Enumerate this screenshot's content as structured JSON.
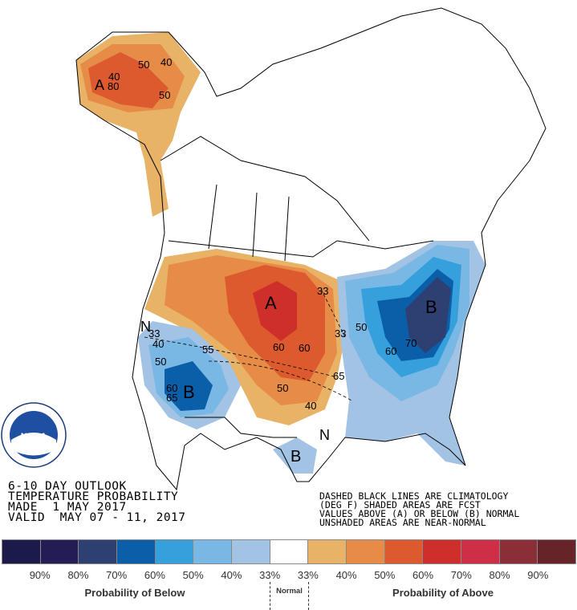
{
  "title": {
    "line1": "6-10 DAY OUTLOOK",
    "line2": "TEMPERATURE PROBABILITY",
    "line3": "MADE  1 MAY 2017",
    "line4": "VALID  MAY 07 - 11, 2017"
  },
  "notes": {
    "line1": "DASHED BLACK LINES ARE CLIMATOLOGY",
    "line2": "(DEG F) SHADED AREAS ARE FCST",
    "line3": "VALUES ABOVE (A) OR BELOW (B) NORMAL",
    "line4": "UNSHADED AREAS ARE NEAR-NORMAL"
  },
  "logo": {
    "text": "NOAA",
    "ring_text": "NATIONAL OCEANIC AND ATMOSPHERIC ADMINISTRATION U.S. DEPARTMENT OF COMMERCE"
  },
  "map_labels": {
    "above_west": "A",
    "below_east": "B",
    "below_southwest": "B",
    "below_texas": "B",
    "alaska_above": "A",
    "normal_ca": "N",
    "normal_gulf": "N",
    "c33a": "33",
    "c33b": "33",
    "c33c": "33",
    "c40a": "40",
    "c40b": "40",
    "c40c": "40",
    "c40d": "40",
    "c50a": "50",
    "c50b": "50",
    "c50c": "50",
    "c50d": "50",
    "c50e": "50",
    "c55": "55",
    "c60a": "60",
    "c60b": "60",
    "c60c": "60",
    "c60d": "60",
    "c65a": "65",
    "c65b": "65",
    "c70": "70",
    "c80": "80"
  },
  "legend": {
    "colors": [
      "#1c1a4a",
      "#241c55",
      "#2e3f72",
      "#0b5ea8",
      "#35a0dc",
      "#79b8e4",
      "#a2c3e3",
      "#ffffff",
      "#e8b267",
      "#e68c47",
      "#dd5a2e",
      "#cf2f2b",
      "#cf2f46",
      "#8c2e38",
      "#672428"
    ],
    "labels": [
      "90%",
      "80%",
      "70%",
      "60%",
      "50%",
      "40%",
      "33%",
      "33%",
      "40%",
      "50%",
      "60%",
      "70%",
      "80%",
      "90%"
    ],
    "below_caption": "Probability of Below",
    "normal_caption": "Normal",
    "above_caption": "Probability of Above"
  }
}
